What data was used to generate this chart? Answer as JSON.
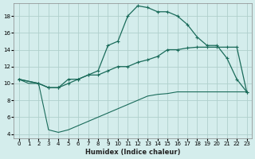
{
  "xlabel": "Humidex (Indice chaleur)",
  "bg_color": "#d4edec",
  "grid_color": "#b0d0cc",
  "line_color": "#1a6b5a",
  "xlim": [
    -0.5,
    23.5
  ],
  "ylim": [
    3.5,
    19.5
  ],
  "xticks": [
    0,
    1,
    2,
    3,
    4,
    5,
    6,
    7,
    8,
    9,
    10,
    11,
    12,
    13,
    14,
    15,
    16,
    17,
    18,
    19,
    20,
    21,
    22,
    23
  ],
  "yticks": [
    4,
    6,
    8,
    10,
    12,
    14,
    16,
    18
  ],
  "upper_x": [
    0,
    2,
    3,
    4,
    5,
    6,
    7,
    8,
    9,
    10,
    11,
    12,
    13,
    14,
    15,
    16,
    17,
    18,
    19,
    20,
    21,
    22,
    23
  ],
  "upper_y": [
    10.5,
    10.0,
    9.5,
    9.5,
    10.5,
    10.5,
    11.0,
    11.5,
    14.5,
    15.0,
    18.0,
    19.2,
    19.0,
    18.5,
    18.5,
    18.0,
    17.0,
    15.5,
    14.5,
    14.5,
    13.0,
    10.5,
    9.0
  ],
  "middle_x": [
    0,
    2,
    3,
    4,
    5,
    6,
    7,
    8,
    9,
    10,
    11,
    12,
    13,
    14,
    15,
    16,
    17,
    18,
    19,
    20,
    21,
    22,
    23
  ],
  "middle_y": [
    10.5,
    10.0,
    9.5,
    9.5,
    10.0,
    10.5,
    11.0,
    11.0,
    11.5,
    12.0,
    12.0,
    12.5,
    12.8,
    13.2,
    14.0,
    14.0,
    14.2,
    14.3,
    14.3,
    14.3,
    14.3,
    14.3,
    9.0
  ],
  "lower_x": [
    0,
    1,
    2,
    3,
    4,
    5,
    6,
    7,
    8,
    9,
    10,
    11,
    12,
    13,
    14,
    15,
    16,
    17,
    18,
    19,
    20,
    21,
    22,
    23
  ],
  "lower_y": [
    10.5,
    10.0,
    10.0,
    4.5,
    4.2,
    4.5,
    5.0,
    5.5,
    6.0,
    6.5,
    7.0,
    7.5,
    8.0,
    8.5,
    8.7,
    8.8,
    9.0,
    9.0,
    9.0,
    9.0,
    9.0,
    9.0,
    9.0,
    9.0
  ]
}
